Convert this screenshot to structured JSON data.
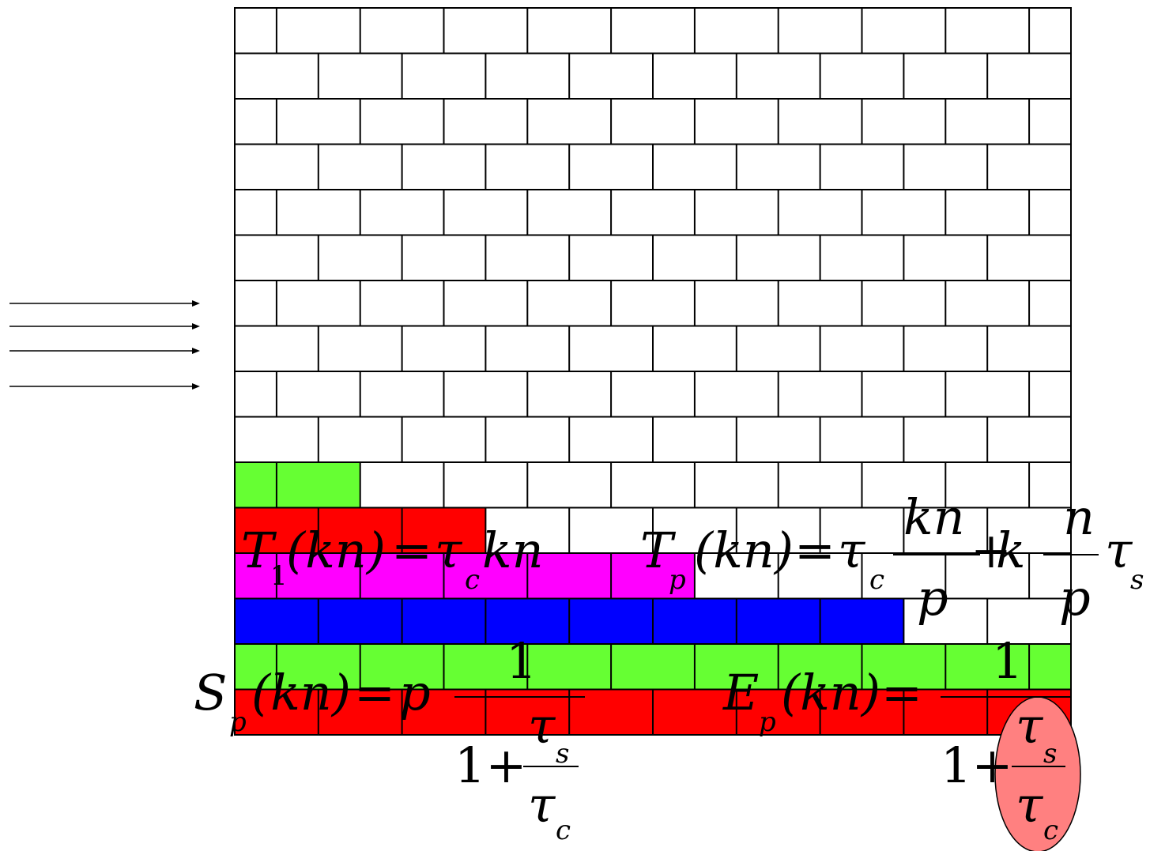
{
  "wall": {
    "rows": 16,
    "bricks_per_row": 10,
    "colors": {
      "white": "#ffffff",
      "green": "#66ff33",
      "red": "#ff0000",
      "magenta": "#ff00ff",
      "blue": "#0000ff",
      "line": "#000000"
    },
    "colored_rows": [
      {
        "row": 10,
        "color": "green",
        "bricks": 1.5
      },
      {
        "row": 11,
        "color": "red",
        "bricks": 3.0
      },
      {
        "row": 12,
        "color": "magenta",
        "bricks": 5.5
      },
      {
        "row": 13,
        "color": "blue",
        "bricks": 8.0
      },
      {
        "row": 14,
        "color": "green",
        "bricks": 10.0
      },
      {
        "row": 15,
        "color": "red",
        "bricks": 10.0
      }
    ]
  },
  "arrows": {
    "count": 4,
    "icon": "arrow-right-icon"
  },
  "formulas": {
    "t1": {
      "T": "T",
      "sub": "1",
      "arg": "(kn)",
      "eq": "=",
      "tau": "τ",
      "tau_sub": "c",
      "rhs": "kn"
    },
    "tp": {
      "T": "T",
      "sub": "p",
      "arg": "(kn)",
      "eq": "=",
      "tau": "τ",
      "tau_sub": "c",
      "num": "kn",
      "den": "p",
      "plus": "+",
      "k": "k",
      "num2": "n",
      "den2": "p",
      "tau2": "τ",
      "tau2_sub": "s"
    },
    "sp": {
      "S": "S",
      "sub": "p",
      "arg": "(kn)",
      "eq": "=",
      "p": "p",
      "one": "1",
      "one_plus": "1+",
      "tau_s": "τ",
      "s": "s",
      "tau_c": "τ",
      "c": "c"
    },
    "ep": {
      "E": "E",
      "sub": "p",
      "arg": "(kn)",
      "eq": "=",
      "one": "1",
      "one_plus": "1+",
      "tau_s": "τ",
      "s": "s",
      "tau_c": "τ",
      "c": "c"
    }
  },
  "highlight": {
    "color": "#ff8080",
    "target": "ratio τs/τc in E_p"
  }
}
